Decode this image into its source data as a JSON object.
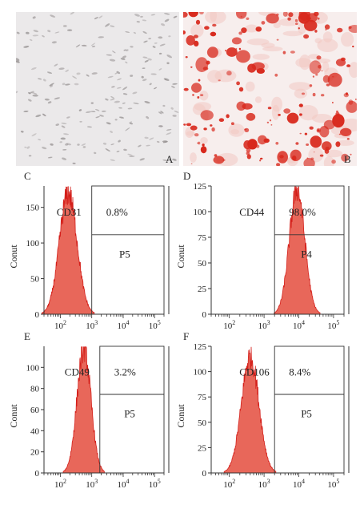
{
  "photos": [
    {
      "letter": "A"
    },
    {
      "letter": "B"
    }
  ],
  "chart_data": [
    {
      "type": "histogram",
      "panel": "C",
      "marker": "CD31",
      "percent": "0.8%",
      "gate": "P5",
      "ylabel": "Conut",
      "xscale": "log",
      "xlim": [
        30,
        200000
      ],
      "ylim": [
        0,
        180
      ],
      "yticks": [
        0,
        50,
        100,
        150
      ],
      "xticks": [
        {
          "b": "10",
          "e": "2"
        },
        {
          "b": "10",
          "e": "3"
        },
        {
          "b": "10",
          "e": "4"
        },
        {
          "b": "10",
          "e": "5"
        }
      ],
      "peak_log10": 2.25,
      "peak_height": 170,
      "sigma": 0.28,
      "gate_from": 1000
    },
    {
      "type": "histogram",
      "panel": "D",
      "marker": "CD44",
      "percent": "98.0%",
      "gate": "P4",
      "ylabel": "Conut",
      "xscale": "log",
      "xlim": [
        30,
        200000
      ],
      "ylim": [
        0,
        125
      ],
      "yticks": [
        0,
        25,
        50,
        75,
        100,
        125
      ],
      "xticks": [
        {
          "b": "10",
          "e": "2"
        },
        {
          "b": "10",
          "e": "3"
        },
        {
          "b": "10",
          "e": "4"
        },
        {
          "b": "10",
          "e": "5"
        }
      ],
      "peak_log10": 3.95,
      "peak_height": 122,
      "sigma": 0.22,
      "gate_from": 2000
    },
    {
      "type": "histogram",
      "panel": "E",
      "marker": "CD49",
      "percent": "3.2%",
      "gate": "P5",
      "ylabel": "Conut",
      "xscale": "log",
      "xlim": [
        30,
        200000
      ],
      "ylim": [
        0,
        120
      ],
      "yticks": [
        0,
        20,
        40,
        60,
        80,
        100
      ],
      "xticks": [
        {
          "b": "10",
          "e": "2"
        },
        {
          "b": "10",
          "e": "3"
        },
        {
          "b": "10",
          "e": "4"
        },
        {
          "b": "10",
          "e": "5"
        }
      ],
      "peak_log10": 2.75,
      "peak_height": 118,
      "sigma": 0.22,
      "gate_from": 1800
    },
    {
      "type": "histogram",
      "panel": "F",
      "marker": "CD106",
      "percent": "8.4%",
      "gate": "P5",
      "ylabel": "Conut",
      "xscale": "log",
      "xlim": [
        30,
        200000
      ],
      "ylim": [
        0,
        125
      ],
      "yticks": [
        0,
        25,
        50,
        75,
        100,
        125
      ],
      "xticks": [
        {
          "b": "10",
          "e": "2"
        },
        {
          "b": "10",
          "e": "3"
        },
        {
          "b": "10",
          "e": "4"
        },
        {
          "b": "10",
          "e": "5"
        }
      ],
      "peak_log10": 2.6,
      "peak_height": 115,
      "sigma": 0.25,
      "gate_from": 2000
    }
  ],
  "colors": {
    "fill": "#e8675a",
    "stroke": "#d41f1a",
    "cell_nuclei": "#8f8a8a",
    "stain": "#d8281c",
    "axis": "#333333"
  }
}
